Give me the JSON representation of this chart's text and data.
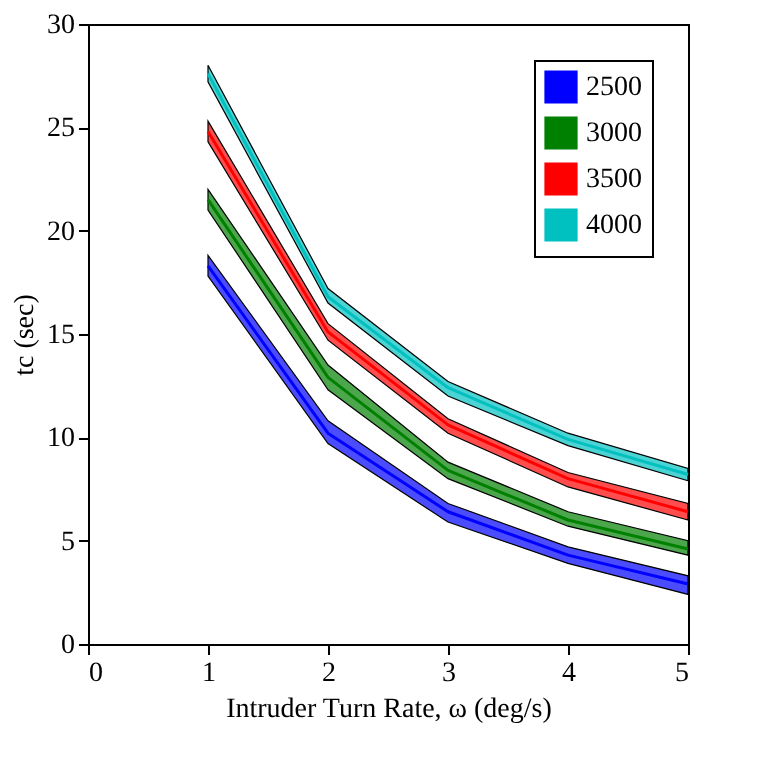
{
  "chart_data": {
    "type": "line",
    "xlabel": "Intruder Turn Rate, ω (deg/s)",
    "ylabel": "tc (sec)",
    "x": [
      1,
      2,
      3,
      4,
      5
    ],
    "xlim": [
      0,
      5
    ],
    "xticks": [
      0,
      1,
      2,
      3,
      4,
      5
    ],
    "ylim": [
      0,
      30
    ],
    "yticks": [
      0,
      5,
      10,
      15,
      20,
      25,
      30
    ],
    "grid": false,
    "legend": "top right",
    "series": [
      {
        "name": "2500",
        "color": "#0000ff",
        "values": [
          18.3,
          10.2,
          6.4,
          4.3,
          2.9
        ],
        "lower": [
          17.8,
          9.7,
          5.9,
          3.9,
          2.4
        ],
        "upper": [
          18.8,
          10.8,
          6.8,
          4.7,
          3.3
        ]
      },
      {
        "name": "3000",
        "color": "#008000",
        "values": [
          21.5,
          12.9,
          8.4,
          6.0,
          4.6
        ],
        "lower": [
          21.0,
          12.3,
          8.0,
          5.7,
          4.3
        ],
        "upper": [
          22.0,
          13.5,
          8.8,
          6.4,
          5.0
        ]
      },
      {
        "name": "3500",
        "color": "#ff0000",
        "values": [
          24.8,
          15.1,
          10.6,
          8.0,
          6.4
        ],
        "lower": [
          24.3,
          14.7,
          10.2,
          7.6,
          6.0
        ],
        "upper": [
          25.3,
          15.5,
          10.9,
          8.3,
          6.8
        ]
      },
      {
        "name": "4000",
        "color": "#00c0c0",
        "values": [
          27.6,
          16.8,
          12.4,
          9.9,
          8.2
        ],
        "lower": [
          27.2,
          16.5,
          12.0,
          9.6,
          7.9
        ],
        "upper": [
          28.0,
          17.2,
          12.7,
          10.2,
          8.5
        ]
      }
    ]
  }
}
